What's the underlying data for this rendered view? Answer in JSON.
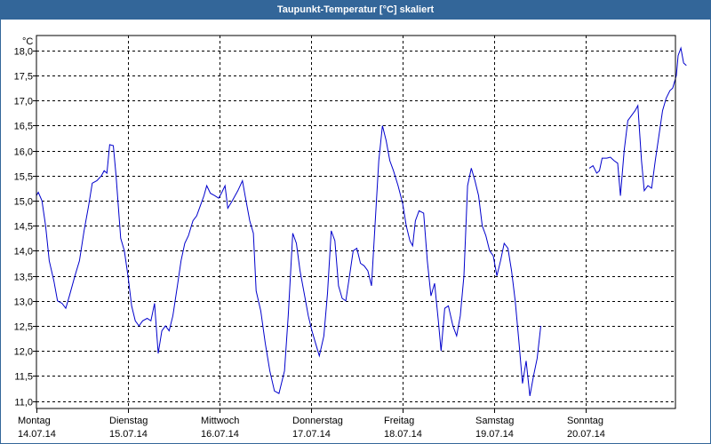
{
  "window": {
    "title": "Taupunkt-Temperatur [°C] skaliert"
  },
  "colors": {
    "frame": "#336699",
    "line": "#0000cc",
    "grid": "#000000",
    "background": "#ffffff"
  },
  "chart_data": {
    "type": "line",
    "title": "Taupunkt-Temperatur [°C] skaliert",
    "ylabel": "°C",
    "xlabel": "",
    "ylim": [
      10.85,
      18.3
    ],
    "xlim": [
      0,
      7.02
    ],
    "y_ticks": [
      11.0,
      11.5,
      12.0,
      12.5,
      13.0,
      13.5,
      14.0,
      14.5,
      15.0,
      15.5,
      16.0,
      16.5,
      17.0,
      17.5,
      18.0
    ],
    "y_tick_labels": [
      "11,0",
      "11,5",
      "12,0",
      "12,5",
      "13,0",
      "13,5",
      "14,0",
      "14,5",
      "15,0",
      "15,5",
      "16,0",
      "16,5",
      "17,0",
      "17,5",
      "18,0"
    ],
    "grid": true,
    "days": [
      {
        "x": 0,
        "weekday": "Montag",
        "date": "14.07.14"
      },
      {
        "x": 1,
        "weekday": "Dienstag",
        "date": "15.07.14"
      },
      {
        "x": 2,
        "weekday": "Mittwoch",
        "date": "16.07.14"
      },
      {
        "x": 3,
        "weekday": "Donnerstag",
        "date": "17.07.14"
      },
      {
        "x": 4,
        "weekday": "Freitag",
        "date": "18.07.14"
      },
      {
        "x": 5,
        "weekday": "Samstag",
        "date": "19.07.14"
      },
      {
        "x": 6,
        "weekday": "Sonntag",
        "date": "20.07.14"
      }
    ],
    "series": [
      {
        "name": "Taupunkt-Temperatur",
        "segments": [
          [
            [
              0.0,
              15.1
            ],
            [
              0.02,
              15.17
            ],
            [
              0.06,
              15.0
            ],
            [
              0.1,
              14.5
            ],
            [
              0.14,
              13.8
            ],
            [
              0.19,
              13.4
            ],
            [
              0.23,
              13.0
            ],
            [
              0.28,
              12.95
            ],
            [
              0.32,
              12.85
            ],
            [
              0.36,
              13.1
            ],
            [
              0.42,
              13.5
            ],
            [
              0.47,
              13.8
            ],
            [
              0.52,
              14.4
            ],
            [
              0.57,
              14.9
            ],
            [
              0.61,
              15.35
            ],
            [
              0.66,
              15.4
            ],
            [
              0.71,
              15.5
            ],
            [
              0.74,
              15.6
            ],
            [
              0.77,
              15.55
            ],
            [
              0.8,
              16.12
            ],
            [
              0.84,
              16.1
            ],
            [
              0.87,
              15.5
            ],
            [
              0.92,
              14.25
            ],
            [
              0.96,
              14.0
            ],
            [
              1.0,
              13.5
            ],
            [
              1.04,
              12.9
            ],
            [
              1.08,
              12.6
            ],
            [
              1.12,
              12.5
            ],
            [
              1.16,
              12.6
            ],
            [
              1.21,
              12.65
            ],
            [
              1.25,
              12.6
            ],
            [
              1.29,
              12.95
            ],
            [
              1.33,
              11.95
            ],
            [
              1.37,
              12.4
            ],
            [
              1.41,
              12.5
            ],
            [
              1.45,
              12.4
            ],
            [
              1.49,
              12.7
            ],
            [
              1.54,
              13.3
            ],
            [
              1.58,
              13.8
            ],
            [
              1.62,
              14.15
            ],
            [
              1.66,
              14.3
            ],
            [
              1.71,
              14.6
            ],
            [
              1.75,
              14.7
            ],
            [
              1.79,
              14.9
            ],
            [
              1.83,
              15.1
            ],
            [
              1.86,
              15.3
            ],
            [
              1.9,
              15.15
            ],
            [
              1.95,
              15.1
            ],
            [
              1.99,
              15.05
            ],
            [
              2.02,
              15.15
            ],
            [
              2.06,
              15.3
            ],
            [
              2.09,
              14.85
            ],
            [
              2.14,
              15.0
            ],
            [
              2.2,
              15.2
            ],
            [
              2.25,
              15.4
            ],
            [
              2.28,
              15.1
            ],
            [
              2.33,
              14.6
            ],
            [
              2.37,
              14.35
            ],
            [
              2.4,
              13.2
            ],
            [
              2.45,
              12.8
            ],
            [
              2.5,
              12.15
            ],
            [
              2.55,
              11.6
            ],
            [
              2.6,
              11.2
            ],
            [
              2.65,
              11.15
            ],
            [
              2.71,
              11.6
            ],
            [
              2.75,
              12.7
            ],
            [
              2.8,
              14.35
            ],
            [
              2.84,
              14.15
            ],
            [
              2.88,
              13.6
            ],
            [
              2.93,
              13.1
            ],
            [
              2.97,
              12.7
            ],
            [
              3.01,
              12.4
            ],
            [
              3.05,
              12.15
            ],
            [
              3.09,
              11.9
            ],
            [
              3.14,
              12.3
            ],
            [
              3.18,
              13.15
            ],
            [
              3.22,
              14.4
            ],
            [
              3.26,
              14.2
            ],
            [
              3.3,
              13.3
            ],
            [
              3.34,
              13.05
            ],
            [
              3.38,
              13.0
            ],
            [
              3.42,
              13.5
            ],
            [
              3.46,
              14.0
            ],
            [
              3.5,
              14.05
            ],
            [
              3.54,
              13.75
            ],
            [
              3.58,
              13.7
            ],
            [
              3.62,
              13.6
            ],
            [
              3.66,
              13.3
            ],
            [
              3.7,
              14.55
            ],
            [
              3.74,
              15.8
            ],
            [
              3.78,
              16.5
            ],
            [
              3.82,
              16.2
            ],
            [
              3.86,
              15.8
            ],
            [
              3.9,
              15.6
            ],
            [
              3.95,
              15.3
            ],
            [
              4.0,
              14.95
            ],
            [
              4.04,
              14.5
            ],
            [
              4.08,
              14.2
            ],
            [
              4.11,
              14.1
            ],
            [
              4.14,
              14.6
            ],
            [
              4.18,
              14.8
            ],
            [
              4.23,
              14.75
            ],
            [
              4.27,
              13.8
            ],
            [
              4.31,
              13.1
            ],
            [
              4.35,
              13.35
            ],
            [
              4.39,
              12.6
            ],
            [
              4.42,
              12.0
            ],
            [
              4.46,
              12.85
            ],
            [
              4.5,
              12.9
            ],
            [
              4.55,
              12.5
            ],
            [
              4.59,
              12.3
            ],
            [
              4.63,
              12.7
            ],
            [
              4.67,
              13.5
            ],
            [
              4.71,
              15.3
            ],
            [
              4.75,
              15.65
            ],
            [
              4.79,
              15.4
            ],
            [
              4.83,
              15.1
            ],
            [
              4.87,
              14.5
            ],
            [
              4.91,
              14.3
            ],
            [
              4.95,
              14.0
            ],
            [
              4.99,
              13.9
            ],
            [
              5.03,
              13.5
            ],
            [
              5.07,
              13.8
            ],
            [
              5.11,
              14.15
            ],
            [
              5.15,
              14.05
            ],
            [
              5.19,
              13.6
            ],
            [
              5.23,
              13.0
            ],
            [
              5.27,
              12.2
            ],
            [
              5.31,
              11.35
            ],
            [
              5.35,
              11.8
            ],
            [
              5.39,
              11.1
            ],
            [
              5.43,
              11.5
            ],
            [
              5.47,
              11.85
            ],
            [
              5.51,
              12.5
            ]
          ],
          [
            [
              6.04,
              15.65
            ],
            [
              6.08,
              15.7
            ],
            [
              6.12,
              15.55
            ],
            [
              6.15,
              15.6
            ],
            [
              6.18,
              15.85
            ],
            [
              6.23,
              15.85
            ],
            [
              6.27,
              15.87
            ],
            [
              6.31,
              15.8
            ],
            [
              6.35,
              15.75
            ],
            [
              6.38,
              15.1
            ],
            [
              6.42,
              16.0
            ],
            [
              6.46,
              16.6
            ],
            [
              6.5,
              16.7
            ],
            [
              6.54,
              16.8
            ],
            [
              6.57,
              16.9
            ],
            [
              6.61,
              15.8
            ],
            [
              6.64,
              15.2
            ],
            [
              6.68,
              15.3
            ],
            [
              6.72,
              15.25
            ],
            [
              6.76,
              15.8
            ],
            [
              6.8,
              16.3
            ],
            [
              6.84,
              16.8
            ],
            [
              6.88,
              17.05
            ],
            [
              6.92,
              17.2
            ],
            [
              6.95,
              17.25
            ],
            [
              6.99,
              17.5
            ],
            [
              7.01,
              17.9
            ],
            [
              7.04,
              18.05
            ],
            [
              7.07,
              17.75
            ],
            [
              7.1,
              17.7
            ]
          ]
        ]
      }
    ]
  }
}
